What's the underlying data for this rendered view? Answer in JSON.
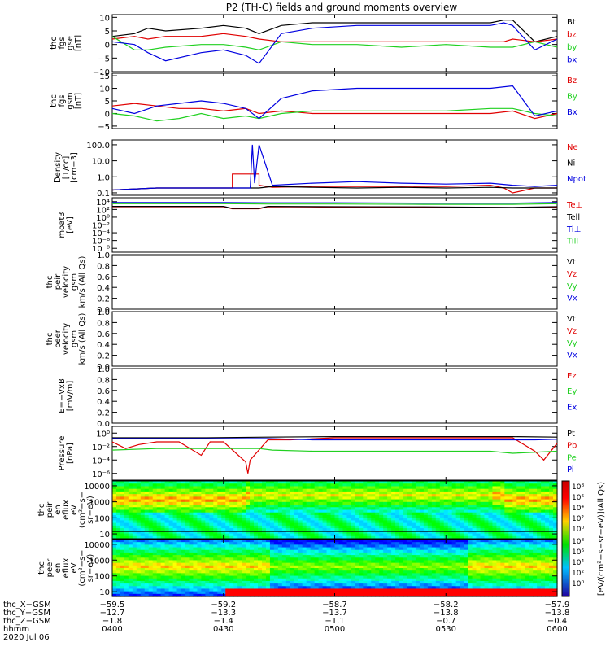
{
  "title": "P2 (TH-C) fields and ground moments overview",
  "colors": {
    "black": "#000000",
    "red": "#e00000",
    "green": "#20d020",
    "blue": "#0000e0"
  },
  "chart_data": [
    {
      "type": "line",
      "panel": "fgs_gse",
      "ylabel": [
        "thc",
        "fgs",
        "gse",
        "[nT]"
      ],
      "yticks": [
        {
          "v": 10,
          "t": "10"
        },
        {
          "v": 5,
          "t": "5"
        },
        {
          "v": 0,
          "t": "0"
        },
        {
          "v": -5,
          "t": "−5"
        },
        {
          "v": -10,
          "t": "−10"
        }
      ],
      "ylim": [
        -10,
        11
      ],
      "legend": [
        {
          "label": "Bt",
          "color": "black"
        },
        {
          "label": "bz",
          "color": "red"
        },
        {
          "label": "by",
          "color": "green"
        },
        {
          "label": "bx",
          "color": "blue"
        }
      ],
      "series": [
        {
          "name": "Bt",
          "color": "black",
          "x": [
            0,
            5,
            8,
            12,
            20,
            25,
            30,
            33,
            38,
            45,
            55,
            65,
            75,
            85,
            88,
            90,
            95,
            100
          ],
          "y": [
            3,
            4,
            6,
            5,
            6,
            7,
            6,
            4,
            7,
            8,
            8,
            8,
            8,
            8,
            9,
            9,
            1,
            3
          ]
        },
        {
          "name": "bz",
          "color": "red",
          "x": [
            0,
            5,
            8,
            12,
            20,
            25,
            30,
            33,
            38,
            45,
            55,
            65,
            75,
            85,
            88,
            90,
            95,
            100
          ],
          "y": [
            2,
            3,
            2,
            3,
            3,
            4,
            3,
            2,
            1,
            1,
            1,
            1,
            1,
            1,
            1,
            2,
            1,
            2
          ]
        },
        {
          "name": "by",
          "color": "green",
          "x": [
            0,
            5,
            8,
            12,
            20,
            25,
            30,
            33,
            38,
            45,
            55,
            65,
            75,
            85,
            88,
            90,
            95,
            100
          ],
          "y": [
            3,
            -2,
            -2,
            -1,
            0,
            0,
            -1,
            -2,
            1,
            0,
            0,
            -1,
            0,
            -1,
            -1,
            -1,
            1,
            -1
          ]
        },
        {
          "name": "bx",
          "color": "blue",
          "x": [
            0,
            5,
            8,
            12,
            20,
            25,
            30,
            33,
            38,
            45,
            55,
            65,
            75,
            85,
            88,
            90,
            95,
            100
          ],
          "y": [
            1,
            0,
            -3,
            -6,
            -3,
            -2,
            -4,
            -7,
            4,
            6,
            7,
            7,
            7,
            7,
            8,
            7,
            -2,
            2
          ]
        }
      ]
    },
    {
      "type": "line",
      "panel": "fgs_gsm",
      "ylabel": [
        "thc",
        "fgs",
        "gsm",
        "[nT]"
      ],
      "yticks": [
        {
          "v": 15,
          "t": "15"
        },
        {
          "v": 10,
          "t": "10"
        },
        {
          "v": 5,
          "t": "5"
        },
        {
          "v": 0,
          "t": "0"
        },
        {
          "v": -5,
          "t": "−5"
        }
      ],
      "ylim": [
        -6,
        16
      ],
      "legend": [
        {
          "label": "Bz",
          "color": "red"
        },
        {
          "label": "By",
          "color": "green"
        },
        {
          "label": "Bx",
          "color": "blue"
        }
      ],
      "series": [
        {
          "name": "Bz",
          "color": "red",
          "x": [
            0,
            5,
            10,
            15,
            20,
            25,
            30,
            33,
            38,
            45,
            55,
            65,
            75,
            85,
            90,
            95,
            100
          ],
          "y": [
            3,
            4,
            3,
            2,
            2,
            1,
            2,
            0,
            1,
            0,
            0,
            0,
            0,
            0,
            1,
            -2,
            0
          ]
        },
        {
          "name": "By",
          "color": "green",
          "x": [
            0,
            5,
            10,
            15,
            20,
            25,
            30,
            33,
            38,
            45,
            55,
            65,
            75,
            85,
            90,
            95,
            100
          ],
          "y": [
            0,
            -1,
            -3,
            -2,
            0,
            -2,
            -1,
            -2,
            0,
            1,
            1,
            1,
            1,
            2,
            2,
            0,
            -1
          ]
        },
        {
          "name": "Bx",
          "color": "blue",
          "x": [
            0,
            5,
            10,
            15,
            20,
            25,
            30,
            33,
            38,
            45,
            55,
            65,
            75,
            85,
            90,
            95,
            100
          ],
          "y": [
            2,
            0,
            3,
            4,
            5,
            4,
            2,
            -2,
            6,
            9,
            10,
            10,
            10,
            10,
            11,
            -1,
            1
          ]
        }
      ]
    },
    {
      "type": "line",
      "panel": "density",
      "scale": "log",
      "ylabel": [
        "Density",
        "[1/cc]",
        "[cm−3]"
      ],
      "yticks": [
        {
          "v": 100,
          "t": "100.0"
        },
        {
          "v": 10,
          "t": "10.0"
        },
        {
          "v": 1,
          "t": "1.0"
        },
        {
          "v": 0.1,
          "t": "0.1"
        }
      ],
      "ylim": [
        0.07,
        200
      ],
      "legend": [
        {
          "label": "Ne",
          "color": "red"
        },
        {
          "label": "Ni",
          "color": "black"
        },
        {
          "label": "Npot",
          "color": "blue"
        }
      ],
      "series": [
        {
          "name": "Ne",
          "color": "red",
          "x": [
            0,
            10,
            20,
            27,
            27,
            33,
            33,
            36,
            45,
            55,
            65,
            75,
            85,
            88,
            90,
            95,
            100
          ],
          "y": [
            0.15,
            0.2,
            0.2,
            0.2,
            1.5,
            1.5,
            0.3,
            0.22,
            0.25,
            0.25,
            0.25,
            0.25,
            0.3,
            0.2,
            0.1,
            0.2,
            0.2
          ]
        },
        {
          "name": "Ni",
          "color": "black",
          "x": [
            0,
            10,
            20,
            27,
            33,
            36,
            45,
            55,
            65,
            75,
            85,
            90,
            95,
            100
          ],
          "y": [
            0.15,
            0.2,
            0.2,
            0.2,
            0.2,
            0.25,
            0.22,
            0.2,
            0.22,
            0.2,
            0.22,
            0.2,
            0.2,
            0.2
          ]
        },
        {
          "name": "Npot",
          "color": "blue",
          "x": [
            0,
            10,
            20,
            27,
            31,
            31.5,
            32,
            33,
            36,
            45,
            55,
            65,
            75,
            85,
            90,
            95,
            100
          ],
          "y": [
            0.15,
            0.2,
            0.2,
            0.2,
            0.2,
            100,
            0.4,
            100,
            0.3,
            0.4,
            0.5,
            0.4,
            0.35,
            0.4,
            0.3,
            0.25,
            0.3
          ]
        }
      ]
    },
    {
      "type": "line",
      "panel": "temperature",
      "scale": "log",
      "ylabel": [
        "moat3",
        "[eV]"
      ],
      "yticks": [
        {
          "v": 10000,
          "t": "10⁴"
        },
        {
          "v": 100,
          "t": "10²"
        },
        {
          "v": 1,
          "t": "10⁰"
        },
        {
          "v": 0.01,
          "t": "10⁻²"
        },
        {
          "v": 0.0001,
          "t": "10⁻⁴"
        },
        {
          "v": 1e-06,
          "t": "10⁻⁶"
        },
        {
          "v": 1e-08,
          "t": "10⁻⁸"
        }
      ],
      "ylim": [
        1e-09,
        100000
      ],
      "legend": [
        {
          "label": "Te⊥",
          "color": "red"
        },
        {
          "label": "Tell",
          "color": "black"
        },
        {
          "label": "Ti⊥",
          "color": "blue"
        },
        {
          "label": "Till",
          "color": "green"
        }
      ],
      "series": [
        {
          "name": "Te⊥",
          "color": "red",
          "x": [
            0,
            25,
            27,
            33,
            35,
            50,
            70,
            90,
            100
          ],
          "y": [
            500,
            500,
            150,
            150,
            500,
            400,
            400,
            300,
            400
          ]
        },
        {
          "name": "Tell",
          "color": "black",
          "x": [
            0,
            25,
            27,
            33,
            35,
            50,
            70,
            90,
            100
          ],
          "y": [
            600,
            600,
            180,
            180,
            600,
            500,
            450,
            350,
            500
          ]
        },
        {
          "name": "Ti⊥",
          "color": "blue",
          "x": [
            0,
            25,
            35,
            50,
            70,
            90,
            100
          ],
          "y": [
            6000,
            6000,
            5000,
            5000,
            4000,
            4000,
            6000
          ]
        },
        {
          "name": "Till",
          "color": "green",
          "x": [
            0,
            25,
            35,
            50,
            70,
            90,
            100
          ],
          "y": [
            3000,
            3000,
            2500,
            2500,
            2000,
            2000,
            3000
          ]
        }
      ]
    },
    {
      "type": "line",
      "panel": "peir_velocity",
      "ylabel": [
        "thc",
        "peir",
        "velocity",
        "gsm",
        "km/s (All Qs)"
      ],
      "yticks": [
        {
          "v": 1,
          "t": "1.0"
        },
        {
          "v": 0.8,
          "t": "0.8"
        },
        {
          "v": 0.6,
          "t": "0.6"
        },
        {
          "v": 0.4,
          "t": "0.4"
        },
        {
          "v": 0.2,
          "t": "0.2"
        },
        {
          "v": 0,
          "t": "0.0"
        }
      ],
      "ylim": [
        0,
        1
      ],
      "legend": [
        {
          "label": "Vt",
          "color": "black"
        },
        {
          "label": "Vz",
          "color": "red"
        },
        {
          "label": "Vy",
          "color": "green"
        },
        {
          "label": "Vx",
          "color": "blue"
        }
      ],
      "series": []
    },
    {
      "type": "line",
      "panel": "peer_velocity",
      "ylabel": [
        "thc",
        "peer",
        "velocity",
        "gsm",
        "km/s (All Qs)"
      ],
      "yticks": [
        {
          "v": 1,
          "t": "1.0"
        },
        {
          "v": 0.8,
          "t": "0.8"
        },
        {
          "v": 0.6,
          "t": "0.6"
        },
        {
          "v": 0.4,
          "t": "0.4"
        },
        {
          "v": 0.2,
          "t": "0.2"
        },
        {
          "v": 0,
          "t": "0.0"
        }
      ],
      "ylim": [
        0,
        1
      ],
      "legend": [
        {
          "label": "Vt",
          "color": "black"
        },
        {
          "label": "Vz",
          "color": "red"
        },
        {
          "label": "Vy",
          "color": "green"
        },
        {
          "label": "Vx",
          "color": "blue"
        }
      ],
      "series": []
    },
    {
      "type": "line",
      "panel": "efield",
      "ylabel": [
        "E=−VxB",
        "[mV/m]"
      ],
      "yticks": [
        {
          "v": 1,
          "t": "1.0"
        },
        {
          "v": 0.8,
          "t": "0.8"
        },
        {
          "v": 0.6,
          "t": "0.6"
        },
        {
          "v": 0.4,
          "t": "0.4"
        },
        {
          "v": 0.2,
          "t": "0.2"
        },
        {
          "v": 0,
          "t": "0.0"
        }
      ],
      "ylim": [
        0,
        1
      ],
      "legend": [
        {
          "label": "Ez",
          "color": "red"
        },
        {
          "label": "Ey",
          "color": "green"
        },
        {
          "label": "Ex",
          "color": "blue"
        }
      ],
      "series": []
    },
    {
      "type": "line",
      "panel": "pressure",
      "scale": "log",
      "ylabel": [
        "Pressure",
        "[nPa]"
      ],
      "yticks": [
        {
          "v": 1,
          "t": "10⁰"
        },
        {
          "v": 0.01,
          "t": "10⁻²"
        },
        {
          "v": 0.0001,
          "t": "10⁻⁴"
        },
        {
          "v": 1e-06,
          "t": "10⁻⁶"
        }
      ],
      "ylim": [
        1e-07,
        10
      ],
      "legend": [
        {
          "label": "Pt",
          "color": "black"
        },
        {
          "label": "Pb",
          "color": "red"
        },
        {
          "label": "Pe",
          "color": "green"
        },
        {
          "label": "Pi",
          "color": "blue"
        }
      ],
      "series": [
        {
          "name": "Pt",
          "color": "black",
          "x": [
            0,
            20,
            35,
            50,
            70,
            90,
            100
          ],
          "y": [
            0.2,
            0.2,
            0.25,
            0.3,
            0.3,
            0.3,
            0.25
          ]
        },
        {
          "name": "Pb",
          "color": "red",
          "x": [
            0,
            3,
            6,
            10,
            15,
            20,
            22,
            25,
            30,
            30.5,
            31,
            35,
            40,
            50,
            70,
            90,
            95,
            97,
            100
          ],
          "y": [
            0.05,
            0.005,
            0.02,
            0.05,
            0.05,
            0.0005,
            0.05,
            0.05,
            5e-05,
            1e-06,
            0.0001,
            0.1,
            0.1,
            0.2,
            0.2,
            0.2,
            0.002,
            0.0001,
            0.03
          ]
        },
        {
          "name": "Pe",
          "color": "green",
          "x": [
            0,
            10,
            20,
            27,
            33,
            36,
            45,
            55,
            65,
            75,
            85,
            90,
            100
          ],
          "y": [
            0.003,
            0.005,
            0.005,
            0.005,
            0.005,
            0.003,
            0.002,
            0.002,
            0.002,
            0.002,
            0.002,
            0.001,
            0.002
          ]
        },
        {
          "name": "Pi",
          "color": "blue",
          "x": [
            0,
            10,
            20,
            35,
            45,
            55,
            65,
            75,
            85,
            95,
            100
          ],
          "y": [
            0.15,
            0.15,
            0.15,
            0.15,
            0.1,
            0.1,
            0.1,
            0.1,
            0.1,
            0.1,
            0.12
          ]
        }
      ]
    },
    {
      "type": "heatmap",
      "panel": "peir_spectrogram",
      "scale": "log",
      "ylabel": [
        "thc",
        "peir",
        "en",
        "eflux",
        "eV",
        "(cm²−s−",
        "sr−eV)"
      ],
      "yticks": [
        {
          "v": 10000,
          "t": "10000"
        },
        {
          "v": 1000,
          "t": "1000"
        },
        {
          "v": 100,
          "t": "100"
        },
        {
          "v": 10,
          "t": "10"
        }
      ],
      "ylim": [
        5,
        20000
      ]
    },
    {
      "type": "heatmap",
      "panel": "peer_spectrogram",
      "scale": "log",
      "ylabel": [
        "thc",
        "peer",
        "en",
        "eflux",
        "eV",
        "(cm²−s−",
        "sr−eV)"
      ],
      "yticks": [
        {
          "v": 10000,
          "t": "10000"
        },
        {
          "v": 1000,
          "t": "1000"
        },
        {
          "v": 100,
          "t": "100"
        },
        {
          "v": 10,
          "t": "10"
        }
      ],
      "ylim": [
        5,
        20000
      ]
    }
  ],
  "colorbar": {
    "label": "[eV/(cm²−s−sr−eV)](All Qs)",
    "ticks_top": [
      "10⁸",
      "10⁶",
      "10⁴",
      "10²",
      "10⁰"
    ],
    "ticks_bottom": [
      "10⁸",
      "10⁶",
      "10⁴",
      "10²",
      "10⁰"
    ]
  },
  "xaxis": {
    "ticks": [
      {
        "pos": 0,
        "rows": [
          "−59.5",
          "−12.7",
          "−1.8",
          "0400"
        ]
      },
      {
        "pos": 25,
        "rows": [
          "−59.2",
          "−13.3",
          "−1.4",
          "0430"
        ]
      },
      {
        "pos": 50,
        "rows": [
          "−58.7",
          "−13.7",
          "−1.1",
          "0500"
        ]
      },
      {
        "pos": 75,
        "rows": [
          "−58.2",
          "−13.8",
          "−0.7",
          "0530"
        ]
      },
      {
        "pos": 100,
        "rows": [
          "−57.9",
          "−13.8",
          "−0.4",
          "0600"
        ]
      }
    ],
    "row_labels": [
      "thc_X−GSM",
      "thc_Y−GSM",
      "thc_Z−GSM",
      "hhmm"
    ],
    "date": "2020 Jul 06"
  }
}
